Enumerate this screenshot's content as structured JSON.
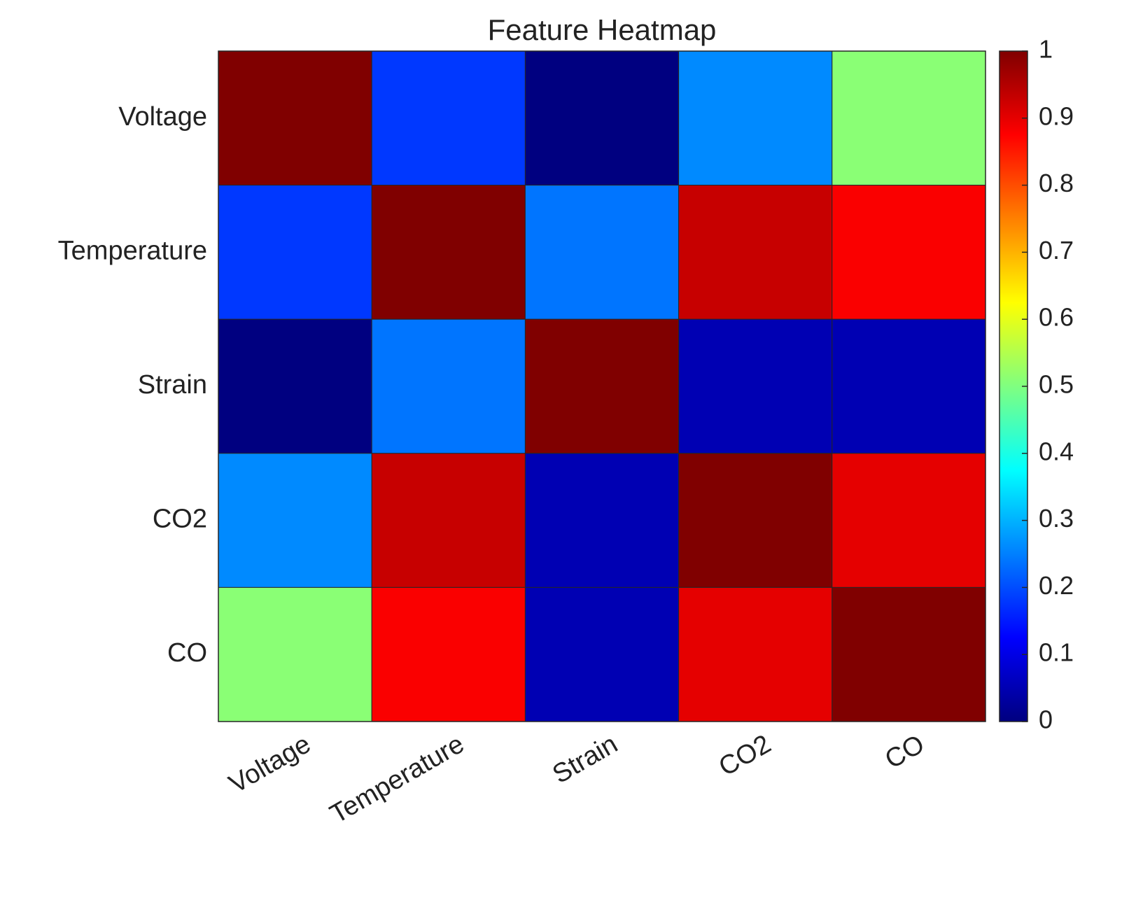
{
  "chart_data": {
    "type": "heatmap",
    "title": "Feature Heatmap",
    "x_categories": [
      "Voltage",
      "Temperature",
      "Strain",
      "CO2",
      "CO"
    ],
    "y_categories": [
      "Voltage",
      "Temperature",
      "Strain",
      "CO2",
      "CO"
    ],
    "values": [
      [
        1,
        0.18,
        0,
        0.26,
        0.51
      ],
      [
        0.18,
        1,
        0.24,
        0.93,
        0.88
      ],
      [
        0,
        0.24,
        1,
        0.05,
        0.05
      ],
      [
        0.26,
        0.93,
        0.05,
        1,
        0.9
      ],
      [
        0.51,
        0.88,
        0.05,
        0.9,
        1
      ]
    ],
    "colormap": "jet",
    "clim": [
      0,
      1
    ],
    "colorbar_ticks": [
      0,
      0.1,
      0.2,
      0.3,
      0.4,
      0.5,
      0.6,
      0.7,
      0.8,
      0.9,
      1
    ]
  }
}
